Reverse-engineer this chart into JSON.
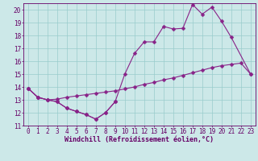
{
  "xlabel": "Windchill (Refroidissement éolien,°C)",
  "xlim": [
    -0.5,
    23.5
  ],
  "ylim": [
    11,
    20.5
  ],
  "xticks": [
    0,
    1,
    2,
    3,
    4,
    5,
    6,
    7,
    8,
    9,
    10,
    11,
    12,
    13,
    14,
    15,
    16,
    17,
    18,
    19,
    20,
    21,
    22,
    23
  ],
  "yticks": [
    11,
    12,
    13,
    14,
    15,
    16,
    17,
    18,
    19,
    20
  ],
  "bg_color": "#cce8e8",
  "line_color": "#882288",
  "grid_color": "#99cccc",
  "line1_x": [
    0,
    1,
    2,
    3,
    4,
    5,
    6,
    7,
    8,
    9
  ],
  "line1_y": [
    13.9,
    13.2,
    13.0,
    12.85,
    12.35,
    12.1,
    11.85,
    11.5,
    12.0,
    12.85
  ],
  "line2_x": [
    0,
    1,
    2,
    3,
    4,
    5,
    6,
    7,
    8,
    9,
    10,
    11,
    12,
    13,
    14,
    15,
    16,
    17,
    18,
    19,
    20,
    21,
    22,
    23
  ],
  "line2_y": [
    13.9,
    13.2,
    13.0,
    13.05,
    13.2,
    13.3,
    13.4,
    13.5,
    13.6,
    13.7,
    13.85,
    14.0,
    14.2,
    14.35,
    14.55,
    14.7,
    14.9,
    15.1,
    15.3,
    15.5,
    15.65,
    15.75,
    15.85,
    15.0
  ],
  "line3_x": [
    0,
    1,
    2,
    3,
    4,
    5,
    6,
    7,
    8,
    9,
    10,
    11,
    12,
    13,
    14,
    15,
    16,
    17,
    18,
    19,
    20,
    21,
    23
  ],
  "line3_y": [
    13.9,
    13.2,
    13.0,
    12.85,
    12.35,
    12.1,
    11.85,
    11.5,
    12.0,
    12.85,
    15.0,
    16.6,
    17.5,
    17.5,
    18.7,
    18.5,
    18.55,
    20.4,
    19.65,
    20.2,
    19.1,
    17.85,
    15.0
  ],
  "marker": "D",
  "markersize": 2.5,
  "linewidth": 0.8,
  "tick_fontsize": 5.5,
  "xlabel_fontsize": 6.0
}
